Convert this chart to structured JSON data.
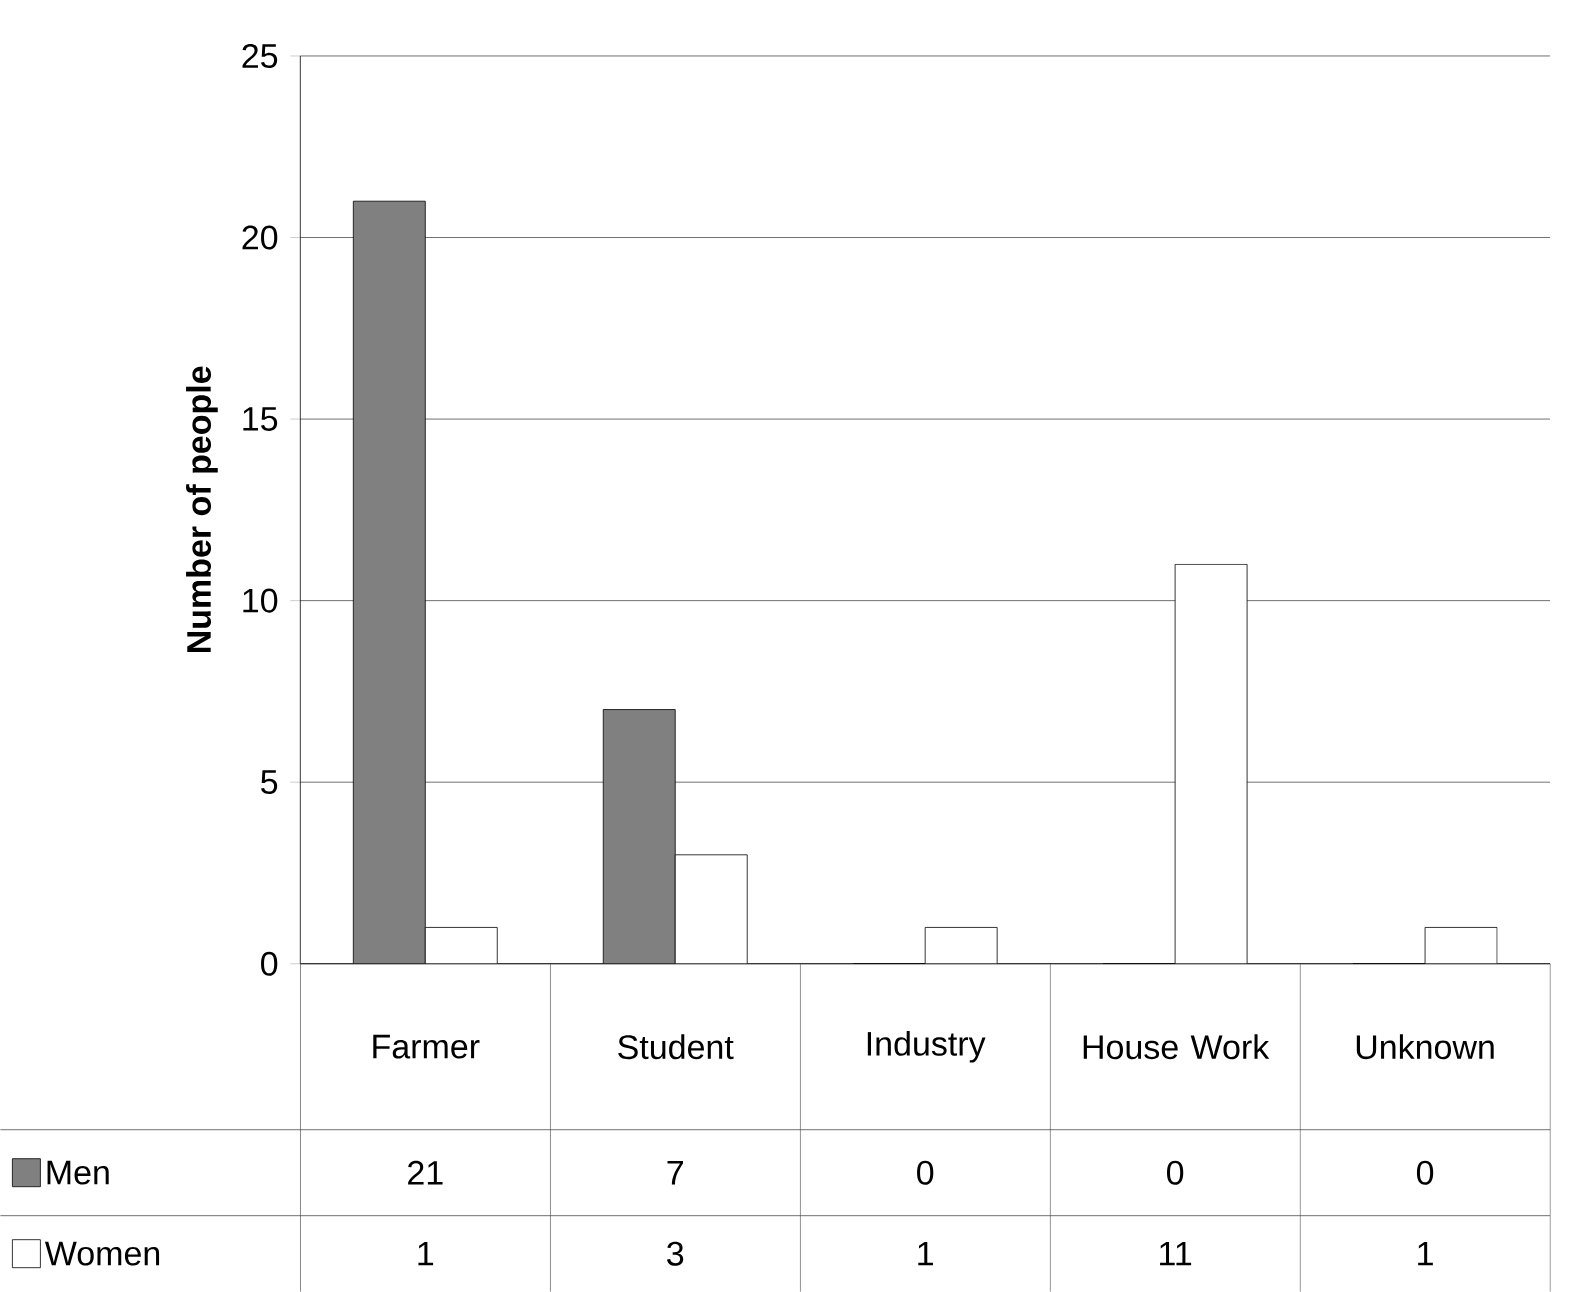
{
  "chart_data": {
    "type": "bar",
    "ylabel": "Number of people",
    "categories": [
      "Farmer",
      "Student",
      "Industry",
      "House Work",
      "Unknown"
    ],
    "series": [
      {
        "name": "Men",
        "color": "#808080",
        "values": [
          21,
          7,
          0,
          0,
          0
        ]
      },
      {
        "name": "Women",
        "color": "#ffffff",
        "values": [
          1,
          3,
          1,
          11,
          1
        ]
      }
    ],
    "ylim": [
      0,
      25
    ],
    "yticks": [
      0,
      5,
      10,
      15,
      20,
      25
    ],
    "grid": "y",
    "legend": "bottom",
    "data_labels": true
  }
}
